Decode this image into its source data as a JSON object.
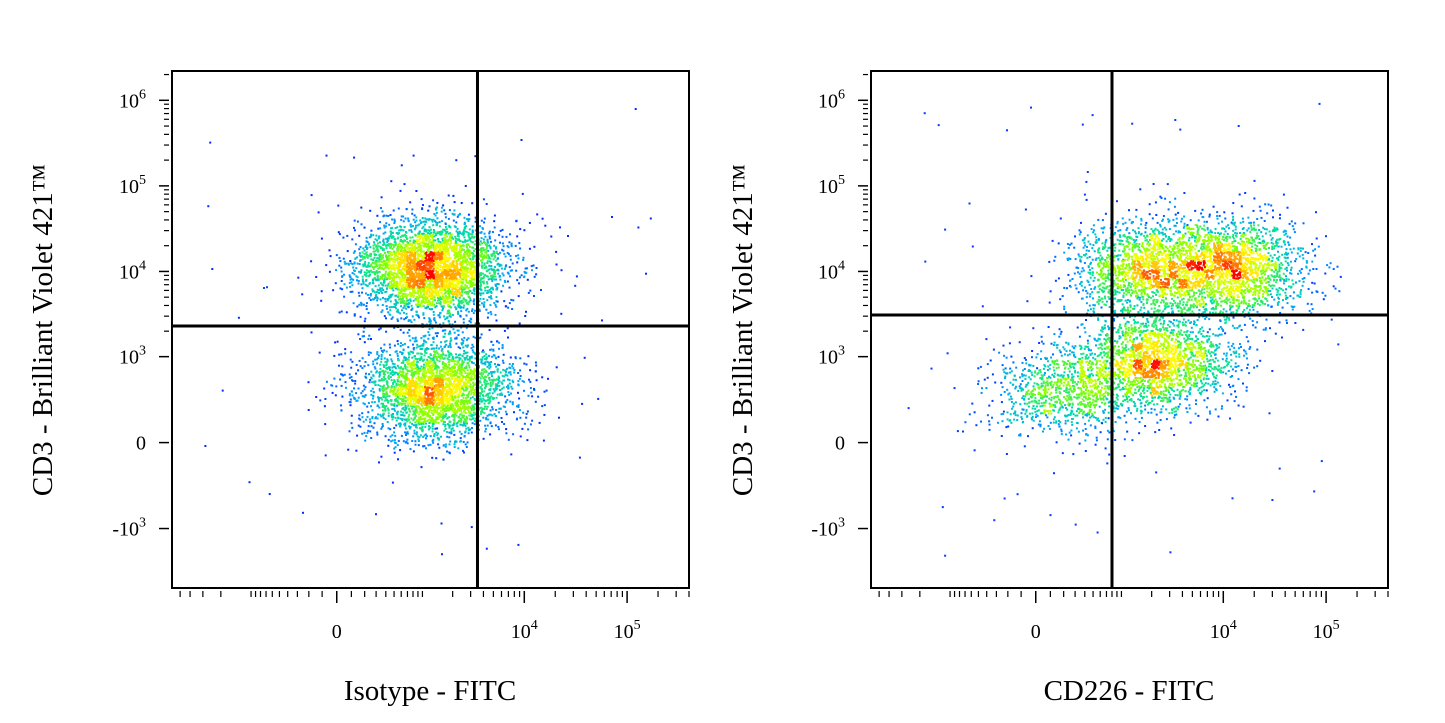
{
  "chart_data": [
    {
      "type": "scatter",
      "subtype": "flow-cytometry-density-plot",
      "xlabel": "Isotype - FITC",
      "ylabel": "CD3 - Brilliant Violet 421™",
      "x_scale": "biexponential",
      "y_scale": "biexponential",
      "x_ticks": [
        {
          "value": 0,
          "label": "0"
        },
        {
          "value": 10000,
          "base": "10",
          "exp": "4"
        },
        {
          "value": 100000,
          "base": "10",
          "exp": "5"
        }
      ],
      "y_ticks": [
        {
          "value": -1000,
          "base": "-10",
          "exp": "3"
        },
        {
          "value": 0,
          "label": "0"
        },
        {
          "value": 1000,
          "base": "10",
          "exp": "3"
        },
        {
          "value": 10000,
          "base": "10",
          "exp": "4"
        },
        {
          "value": 100000,
          "base": "10",
          "exp": "5"
        },
        {
          "value": 1000000,
          "base": "10",
          "exp": "6"
        }
      ],
      "quadrant_gate": {
        "x": 3500,
        "y": 2300
      },
      "populations": [
        {
          "x_center": 1200,
          "y_center": 11000,
          "weight": 0.55
        },
        {
          "x_center": 1300,
          "y_center": 400,
          "weight": 0.45
        }
      ],
      "colormap": [
        "#0000ff",
        "#00a0ff",
        "#00e0a0",
        "#80ff00",
        "#ffff00",
        "#ff8000",
        "#ff0000"
      ]
    },
    {
      "type": "scatter",
      "subtype": "flow-cytometry-density-plot",
      "xlabel": "CD226 - FITC",
      "ylabel": "CD3 - Brilliant Violet 421™",
      "x_scale": "biexponential",
      "y_scale": "biexponential",
      "x_ticks": [
        {
          "value": 0,
          "label": "0"
        },
        {
          "value": 10000,
          "base": "10",
          "exp": "4"
        },
        {
          "value": 100000,
          "base": "10",
          "exp": "5"
        }
      ],
      "y_ticks": [
        {
          "value": -1000,
          "base": "-10",
          "exp": "3"
        },
        {
          "value": 0,
          "label": "0"
        },
        {
          "value": 1000,
          "base": "10",
          "exp": "3"
        },
        {
          "value": 10000,
          "base": "10",
          "exp": "4"
        },
        {
          "value": 100000,
          "base": "10",
          "exp": "5"
        },
        {
          "value": 1000000,
          "base": "10",
          "exp": "6"
        }
      ],
      "quadrant_gate": {
        "x": 800,
        "y": 3100
      },
      "populations": [
        {
          "x_center": 11000,
          "y_center": 11000,
          "weight": 0.3
        },
        {
          "x_center": 1800,
          "y_center": 11000,
          "weight": 0.25
        },
        {
          "x_center": 2200,
          "y_center": 900,
          "weight": 0.3
        },
        {
          "x_center": 200,
          "y_center": 400,
          "weight": 0.15
        }
      ],
      "colormap": [
        "#0000ff",
        "#00a0ff",
        "#00e0a0",
        "#80ff00",
        "#ffff00",
        "#ff8000",
        "#ff0000"
      ]
    }
  ]
}
